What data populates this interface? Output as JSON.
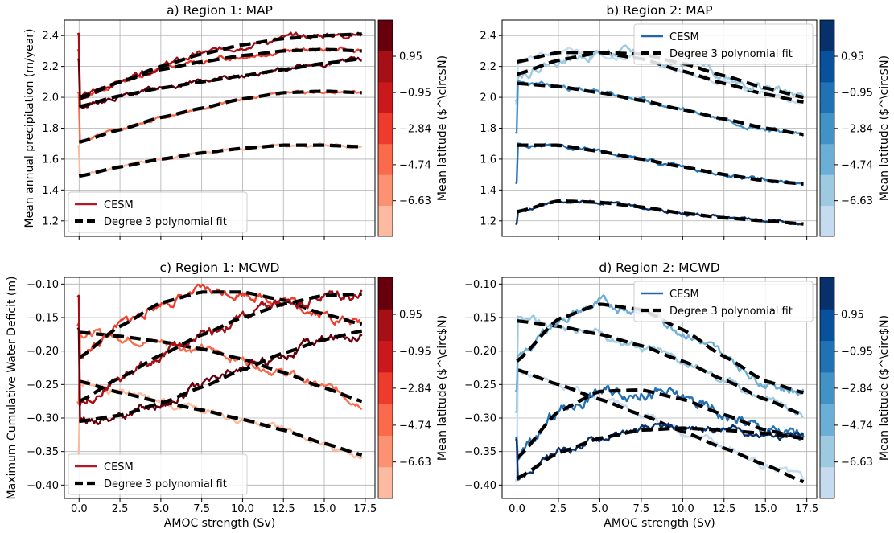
{
  "figure": {
    "xlabel": "AMOC strength (Sv)",
    "colorbar_label": "Mean latitude ($^\\circ$N)"
  },
  "chart_data": [
    {
      "id": "a",
      "type": "line",
      "title": "a) Region 1: MAP",
      "ylabel": "Mean annual precipitation (m/year)",
      "xlabel": "",
      "xlim": [
        -0.9,
        18.1
      ],
      "ylim": [
        1.1,
        2.5
      ],
      "xticks": [
        0,
        2.5,
        5,
        7.5,
        10,
        12.5,
        15,
        17.5
      ],
      "xticklabels": [
        "0.0",
        "2.5",
        "5.0",
        "7.5",
        "10.0",
        "12.5",
        "15.0",
        "17.5"
      ],
      "show_xticklabels": false,
      "yticks": [
        1.2,
        1.4,
        1.6,
        1.8,
        2.0,
        2.2,
        2.4
      ],
      "yticklabels": [
        "1.2",
        "1.4",
        "1.6",
        "1.8",
        "2.0",
        "2.2",
        "2.4"
      ],
      "cmap": "Reds",
      "legend": {
        "position": "lower-left",
        "entries": [
          "CESM",
          "Degree 3 polynomial fit"
        ],
        "swatch": "#b2182b"
      },
      "colorbar": {
        "colors": [
          "#fcbba1",
          "#fc9272",
          "#fb6a4a",
          "#ef3b2c",
          "#cb181d",
          "#a50f15",
          "#67000d"
        ],
        "ticks": [
          "−6.63",
          "−4.74",
          "−2.84",
          "−0.95",
          "0.95"
        ]
      },
      "series": [
        {
          "lat": -6.63,
          "color": "#fcbba1",
          "fit": [
            [
              0,
              1.49
            ],
            [
              2.5,
              1.55
            ],
            [
              5,
              1.6
            ],
            [
              7.5,
              1.64
            ],
            [
              10,
              1.67
            ],
            [
              12.5,
              1.69
            ],
            [
              15,
              1.69
            ],
            [
              17.3,
              1.68
            ]
          ],
          "noise": 0.008,
          "seed": 11
        },
        {
          "lat": -4.74,
          "color": "#fb6a4a",
          "fit": [
            [
              0,
              1.71
            ],
            [
              2.5,
              1.79
            ],
            [
              5,
              1.87
            ],
            [
              7.5,
              1.93
            ],
            [
              10,
              1.99
            ],
            [
              12.5,
              2.03
            ],
            [
              15,
              2.04
            ],
            [
              17.3,
              2.03
            ]
          ],
          "noise": 0.008,
          "seed": 12
        },
        {
          "lat": -2.84,
          "color": "#ef3b2c",
          "fit": [
            [
              0,
              1.99
            ],
            [
              2.5,
              2.1
            ],
            [
              5,
              2.18
            ],
            [
              7.5,
              2.23
            ],
            [
              10,
              2.27
            ],
            [
              12.5,
              2.3
            ],
            [
              15,
              2.31
            ],
            [
              17.3,
              2.3
            ]
          ],
          "noise": 0.012,
          "seed": 13
        },
        {
          "lat": -0.95,
          "color": "#a50f15",
          "fit": [
            [
              0,
              2.0
            ],
            [
              2.5,
              2.1
            ],
            [
              5,
              2.2
            ],
            [
              7.5,
              2.28
            ],
            [
              10,
              2.34
            ],
            [
              12.5,
              2.38
            ],
            [
              15,
              2.4
            ],
            [
              17.3,
              2.41
            ]
          ],
          "noise": 0.015,
          "seed": 14
        },
        {
          "lat": 0.95,
          "color": "#67000d",
          "fit": [
            [
              0,
              1.94
            ],
            [
              2.5,
              2.01
            ],
            [
              5,
              2.06
            ],
            [
              7.5,
              2.1
            ],
            [
              10,
              2.14
            ],
            [
              12.5,
              2.18
            ],
            [
              15,
              2.22
            ],
            [
              17.3,
              2.25
            ]
          ],
          "noise": 0.012,
          "seed": 15
        }
      ]
    },
    {
      "id": "b",
      "type": "line",
      "title": "b) Region 2: MAP",
      "ylabel": "",
      "xlabel": "",
      "xlim": [
        -0.9,
        18.1
      ],
      "ylim": [
        1.1,
        2.5
      ],
      "xticks": [
        0,
        2.5,
        5,
        7.5,
        10,
        12.5,
        15,
        17.5
      ],
      "xticklabels": [
        "0.0",
        "2.5",
        "5.0",
        "7.5",
        "10.0",
        "12.5",
        "15.0",
        "17.5"
      ],
      "show_xticklabels": false,
      "yticks": [
        1.2,
        1.4,
        1.6,
        1.8,
        2.0,
        2.2,
        2.4
      ],
      "yticklabels": [
        "1.2",
        "1.4",
        "1.6",
        "1.8",
        "2.0",
        "2.2",
        "2.4"
      ],
      "cmap": "Blues",
      "legend": {
        "position": "top-right",
        "entries": [
          "CESM",
          "Degree 3 polynomial fit"
        ],
        "swatch": "#2166ac"
      },
      "colorbar": {
        "colors": [
          "#c6dbef",
          "#9ecae1",
          "#6baed6",
          "#4292c6",
          "#2171b5",
          "#08519c",
          "#08306b"
        ],
        "ticks": [
          "−6.63",
          "−4.74",
          "−2.84",
          "−0.95",
          "0.95"
        ]
      },
      "series": [
        {
          "lat": -6.63,
          "color": "#c6dbef",
          "fit": [
            [
              0,
              2.23
            ],
            [
              2.5,
              2.29
            ],
            [
              5,
              2.29
            ],
            [
              7.5,
              2.25
            ],
            [
              10,
              2.17
            ],
            [
              12.5,
              2.09
            ],
            [
              15,
              2.02
            ],
            [
              17.3,
              1.97
            ]
          ],
          "noise": 0.015,
          "seed": 21
        },
        {
          "lat": -4.74,
          "color": "#9ecae1",
          "fit": [
            [
              0,
              2.15
            ],
            [
              2.5,
              2.24
            ],
            [
              5,
              2.29
            ],
            [
              7.5,
              2.28
            ],
            [
              10,
              2.22
            ],
            [
              12.5,
              2.14
            ],
            [
              15,
              2.06
            ],
            [
              17.3,
              2.0
            ]
          ],
          "noise": 0.025,
          "seed": 22
        },
        {
          "lat": -2.84,
          "color": "#4292c6",
          "fit": [
            [
              0,
              2.09
            ],
            [
              2.5,
              2.07
            ],
            [
              5,
              2.03
            ],
            [
              7.5,
              1.98
            ],
            [
              10,
              1.92
            ],
            [
              12.5,
              1.86
            ],
            [
              15,
              1.8
            ],
            [
              17.3,
              1.76
            ]
          ],
          "noise": 0.012,
          "seed": 23
        },
        {
          "lat": -0.95,
          "color": "#2171b5",
          "fit": [
            [
              0,
              1.69
            ],
            [
              2.5,
              1.69
            ],
            [
              5,
              1.65
            ],
            [
              7.5,
              1.6
            ],
            [
              10,
              1.55
            ],
            [
              12.5,
              1.5
            ],
            [
              15,
              1.46
            ],
            [
              17.3,
              1.44
            ]
          ],
          "noise": 0.01,
          "seed": 24
        },
        {
          "lat": 0.95,
          "color": "#08306b",
          "fit": [
            [
              0,
              1.26
            ],
            [
              2.5,
              1.33
            ],
            [
              5,
              1.32
            ],
            [
              7.5,
              1.29
            ],
            [
              10,
              1.25
            ],
            [
              12.5,
              1.22
            ],
            [
              15,
              1.2
            ],
            [
              17.3,
              1.18
            ]
          ],
          "noise": 0.008,
          "seed": 25
        }
      ]
    },
    {
      "id": "c",
      "type": "line",
      "title": "c) Region 1: MCWD",
      "ylabel": "Maximum Cumulative Water Deficit (m)",
      "xlabel": "AMOC strength (Sv)",
      "xlim": [
        -0.9,
        18.1
      ],
      "ylim": [
        -0.42,
        -0.09
      ],
      "xticks": [
        0,
        2.5,
        5,
        7.5,
        10,
        12.5,
        15,
        17.5
      ],
      "xticklabels": [
        "0.0",
        "2.5",
        "5.0",
        "7.5",
        "10.0",
        "12.5",
        "15.0",
        "17.5"
      ],
      "show_xticklabels": true,
      "yticks": [
        -0.4,
        -0.35,
        -0.3,
        -0.25,
        -0.2,
        -0.15,
        -0.1
      ],
      "yticklabels": [
        "−0.40",
        "−0.35",
        "−0.30",
        "−0.25",
        "−0.20",
        "−0.15",
        "−0.10"
      ],
      "cmap": "Reds",
      "legend": {
        "position": "lower-left",
        "entries": [
          "CESM",
          "Degree 3 polynomial fit"
        ],
        "swatch": "#b2182b"
      },
      "colorbar": {
        "colors": [
          "#fcbba1",
          "#fc9272",
          "#fb6a4a",
          "#ef3b2c",
          "#cb181d",
          "#a50f15",
          "#67000d"
        ],
        "ticks": [
          "−6.63",
          "−4.74",
          "−2.84",
          "−0.95",
          "0.95"
        ]
      },
      "series": [
        {
          "lat": -6.63,
          "color": "#fcbba1",
          "fit": [
            [
              0,
              -0.245
            ],
            [
              2.5,
              -0.262
            ],
            [
              5,
              -0.276
            ],
            [
              7.5,
              -0.288
            ],
            [
              10,
              -0.302
            ],
            [
              12.5,
              -0.318
            ],
            [
              15,
              -0.338
            ],
            [
              17.3,
              -0.355
            ]
          ],
          "noise": 0.004,
          "seed": 31
        },
        {
          "lat": -4.74,
          "color": "#fb6a4a",
          "fit": [
            [
              0,
              -0.172
            ],
            [
              2.5,
              -0.178
            ],
            [
              5,
              -0.186
            ],
            [
              7.5,
              -0.197
            ],
            [
              10,
              -0.212
            ],
            [
              12.5,
              -0.232
            ],
            [
              15,
              -0.255
            ],
            [
              17.3,
              -0.275
            ]
          ],
          "noise": 0.005,
          "seed": 32
        },
        {
          "lat": -2.84,
          "color": "#ef3b2c",
          "fit": [
            [
              0,
              -0.21
            ],
            [
              2.5,
              -0.163
            ],
            [
              5,
              -0.128
            ],
            [
              7.5,
              -0.112
            ],
            [
              10,
              -0.112
            ],
            [
              12.5,
              -0.124
            ],
            [
              15,
              -0.145
            ],
            [
              17.3,
              -0.16
            ]
          ],
          "noise": 0.006,
          "seed": 33
        },
        {
          "lat": -0.95,
          "color": "#a50f15",
          "fit": [
            [
              0,
              -0.275
            ],
            [
              2.5,
              -0.24
            ],
            [
              5,
              -0.206
            ],
            [
              7.5,
              -0.176
            ],
            [
              10,
              -0.15
            ],
            [
              12.5,
              -0.13
            ],
            [
              15,
              -0.117
            ],
            [
              17.3,
              -0.115
            ]
          ],
          "noise": 0.007,
          "seed": 34
        },
        {
          "lat": 0.95,
          "color": "#67000d",
          "fit": [
            [
              0,
              -0.305
            ],
            [
              2.5,
              -0.296
            ],
            [
              5,
              -0.278
            ],
            [
              7.5,
              -0.254
            ],
            [
              10,
              -0.228
            ],
            [
              12.5,
              -0.203
            ],
            [
              15,
              -0.183
            ],
            [
              17.3,
              -0.17
            ]
          ],
          "noise": 0.006,
          "seed": 35
        }
      ]
    },
    {
      "id": "d",
      "type": "line",
      "title": "d) Region 2: MCWD",
      "ylabel": "",
      "xlabel": "AMOC strength (Sv)",
      "xlim": [
        -0.9,
        18.1
      ],
      "ylim": [
        -0.42,
        -0.09
      ],
      "xticks": [
        0,
        2.5,
        5,
        7.5,
        10,
        12.5,
        15,
        17.5
      ],
      "xticklabels": [
        "0.0",
        "2.5",
        "5.0",
        "7.5",
        "10.0",
        "12.5",
        "15.0",
        "17.5"
      ],
      "show_xticklabels": true,
      "yticks": [
        -0.4,
        -0.35,
        -0.3,
        -0.25,
        -0.2,
        -0.15,
        -0.1
      ],
      "yticklabels": [
        "−0.40",
        "−0.35",
        "−0.30",
        "−0.25",
        "−0.20",
        "−0.15",
        "−0.10"
      ],
      "cmap": "Blues",
      "legend": {
        "position": "top-right",
        "entries": [
          "CESM",
          "Degree 3 polynomial fit"
        ],
        "swatch": "#2166ac"
      },
      "colorbar": {
        "colors": [
          "#c6dbef",
          "#9ecae1",
          "#6baed6",
          "#4292c6",
          "#2171b5",
          "#08519c",
          "#08306b"
        ],
        "ticks": [
          "−6.63",
          "−4.74",
          "−2.84",
          "−0.95",
          "0.95"
        ]
      },
      "series": [
        {
          "lat": -6.63,
          "color": "#c6dbef",
          "fit": [
            [
              0,
              -0.228
            ],
            [
              2.5,
              -0.25
            ],
            [
              5,
              -0.272
            ],
            [
              7.5,
              -0.295
            ],
            [
              10,
              -0.32
            ],
            [
              12.5,
              -0.345
            ],
            [
              15,
              -0.37
            ],
            [
              17.3,
              -0.395
            ]
          ],
          "noise": 0.005,
          "seed": 41
        },
        {
          "lat": -4.74,
          "color": "#9ecae1",
          "fit": [
            [
              0,
              -0.155
            ],
            [
              2.5,
              -0.163
            ],
            [
              5,
              -0.175
            ],
            [
              7.5,
              -0.192
            ],
            [
              10,
              -0.215
            ],
            [
              12.5,
              -0.243
            ],
            [
              15,
              -0.272
            ],
            [
              17.3,
              -0.295
            ]
          ],
          "noise": 0.005,
          "seed": 42
        },
        {
          "lat": -2.84,
          "color": "#6baed6",
          "fit": [
            [
              0,
              -0.215
            ],
            [
              2.5,
              -0.152
            ],
            [
              5,
              -0.13
            ],
            [
              7.5,
              -0.138
            ],
            [
              10,
              -0.168
            ],
            [
              12.5,
              -0.208
            ],
            [
              15,
              -0.245
            ],
            [
              17.3,
              -0.262
            ]
          ],
          "noise": 0.006,
          "seed": 43
        },
        {
          "lat": -0.95,
          "color": "#2171b5",
          "fit": [
            [
              0,
              -0.36
            ],
            [
              2.5,
              -0.29
            ],
            [
              5,
              -0.26
            ],
            [
              7.5,
              -0.258
            ],
            [
              10,
              -0.272
            ],
            [
              12.5,
              -0.295
            ],
            [
              15,
              -0.318
            ],
            [
              17.3,
              -0.33
            ]
          ],
          "noise": 0.008,
          "seed": 44
        },
        {
          "lat": 0.95,
          "color": "#08306b",
          "fit": [
            [
              0,
              -0.39
            ],
            [
              2.5,
              -0.352
            ],
            [
              5,
              -0.33
            ],
            [
              7.5,
              -0.318
            ],
            [
              10,
              -0.315
            ],
            [
              12.5,
              -0.318
            ],
            [
              15,
              -0.323
            ],
            [
              17.3,
              -0.33
            ]
          ],
          "noise": 0.005,
          "seed": 45
        }
      ]
    }
  ]
}
